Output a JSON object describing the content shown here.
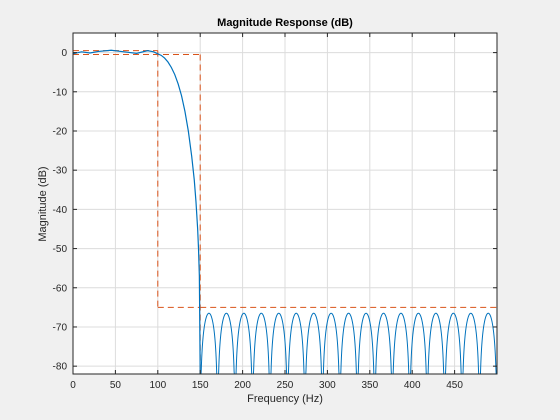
{
  "chart_data": {
    "type": "line",
    "title": "Magnitude Response (dB)",
    "xlabel": "Frequency (Hz)",
    "ylabel": "Magnitude (dB)",
    "xlim": [
      0,
      500
    ],
    "ylim": [
      -82,
      5
    ],
    "grid": true,
    "x_ticks": [
      0,
      50,
      100,
      150,
      200,
      250,
      300,
      350,
      400,
      450
    ],
    "y_ticks": [
      0,
      -10,
      -20,
      -30,
      -40,
      -50,
      -60,
      -70,
      -80
    ],
    "series": [
      {
        "role": "response",
        "color": "#0072bd",
        "points": [
          [
            0,
            -0.3
          ],
          [
            10,
            0.2
          ],
          [
            20,
            -0.1
          ],
          [
            30,
            0.3
          ],
          [
            45,
            0.6
          ],
          [
            60,
            0.2
          ],
          [
            75,
            -0.2
          ],
          [
            88,
            0.5
          ],
          [
            95,
            0.2
          ],
          [
            100,
            -0.3
          ],
          [
            104,
            -0.7
          ],
          [
            108,
            -1.4
          ],
          [
            112,
            -2.4
          ],
          [
            116,
            -3.8
          ],
          [
            120,
            -5.6
          ],
          [
            124,
            -8.0
          ],
          [
            128,
            -11.0
          ],
          [
            132,
            -15.0
          ],
          [
            136,
            -20.0
          ],
          [
            140,
            -26.5
          ],
          [
            143,
            -32.5
          ],
          [
            145,
            -38.0
          ],
          [
            147,
            -45.0
          ],
          [
            148,
            -50.0
          ],
          [
            149,
            -57.0
          ],
          [
            150,
            -82.0
          ]
        ]
      },
      {
        "role": "passband-mask",
        "color": "#d95319",
        "dashed": true,
        "segments": [
          [
            [
              0,
              0.5
            ],
            [
              100,
              0.5
            ]
          ],
          [
            [
              0,
              -0.5
            ],
            [
              150,
              -0.5
            ]
          ],
          [
            [
              100,
              0.5
            ],
            [
              100,
              -65
            ]
          ],
          [
            [
              100,
              -65
            ],
            [
              150,
              -65
            ]
          ],
          [
            [
              150,
              -0.5
            ],
            [
              150,
              -82
            ]
          ]
        ]
      },
      {
        "role": "stopband-mask",
        "color": "#d95319",
        "dashed": true,
        "segments": [
          [
            [
              150,
              -65
            ],
            [
              500,
              -65
            ]
          ]
        ]
      },
      {
        "role": "stopband-ripple",
        "color": "#0072bd",
        "peak_db": -66.5,
        "floor_db": -82,
        "start_hz": 150,
        "end_hz": 500,
        "lobes": 17
      }
    ]
  }
}
